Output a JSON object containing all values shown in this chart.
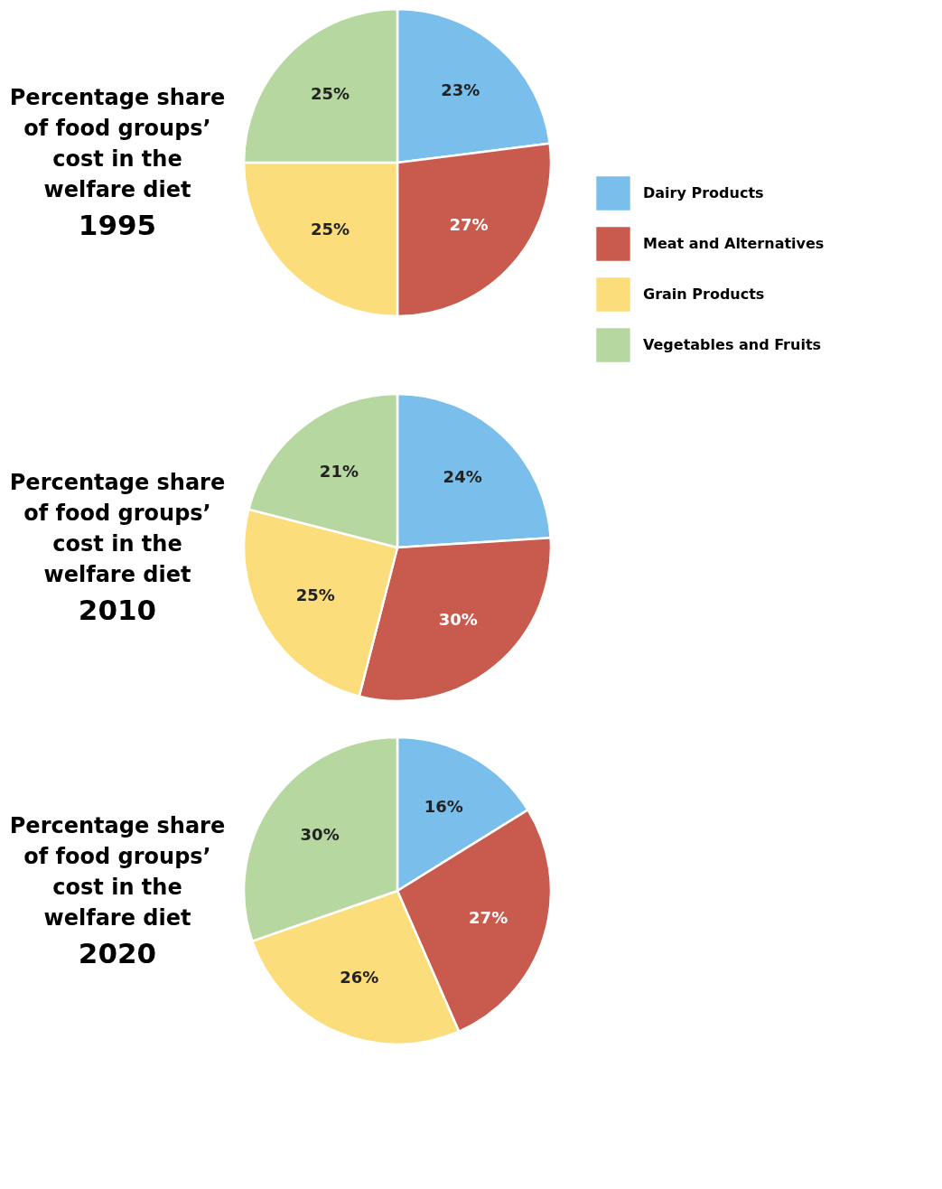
{
  "chart_data": [
    {
      "type": "pie",
      "title": "Percentage share of food groups’ cost in the welfare diet",
      "subtitle": "1995",
      "categories": [
        "Dairy Products",
        "Meat and Alternatives",
        "Grain Products",
        "Vegetables and Fruits"
      ],
      "values": [
        23,
        27,
        25,
        25
      ],
      "colors": [
        "#7abfeb",
        "#c95a4e",
        "#fbdd7c",
        "#b7d7a0"
      ],
      "value_labels": [
        "23%",
        "27%",
        "25%",
        "25%"
      ],
      "legend": "right"
    },
    {
      "type": "pie",
      "title": "Percentage share of food groups’ cost in the welfare diet",
      "subtitle": "2010",
      "values": [
        24,
        30,
        25,
        21
      ],
      "colors": [
        "#7abfeb",
        "#c95a4e",
        "#fbdd7c",
        "#b7d7a0"
      ],
      "value_labels": [
        "24%",
        "30%",
        "25%",
        "21%"
      ]
    },
    {
      "type": "pie",
      "title": "Percentage share of food groups’ cost in the welfare diet",
      "subtitle": "2020",
      "values": [
        16,
        27,
        26,
        30
      ],
      "colors": [
        "#7abfeb",
        "#c95a4e",
        "#fbdd7c",
        "#b7d7a0"
      ],
      "value_labels": [
        "16%",
        "27%",
        "26%",
        "30%"
      ]
    }
  ]
}
